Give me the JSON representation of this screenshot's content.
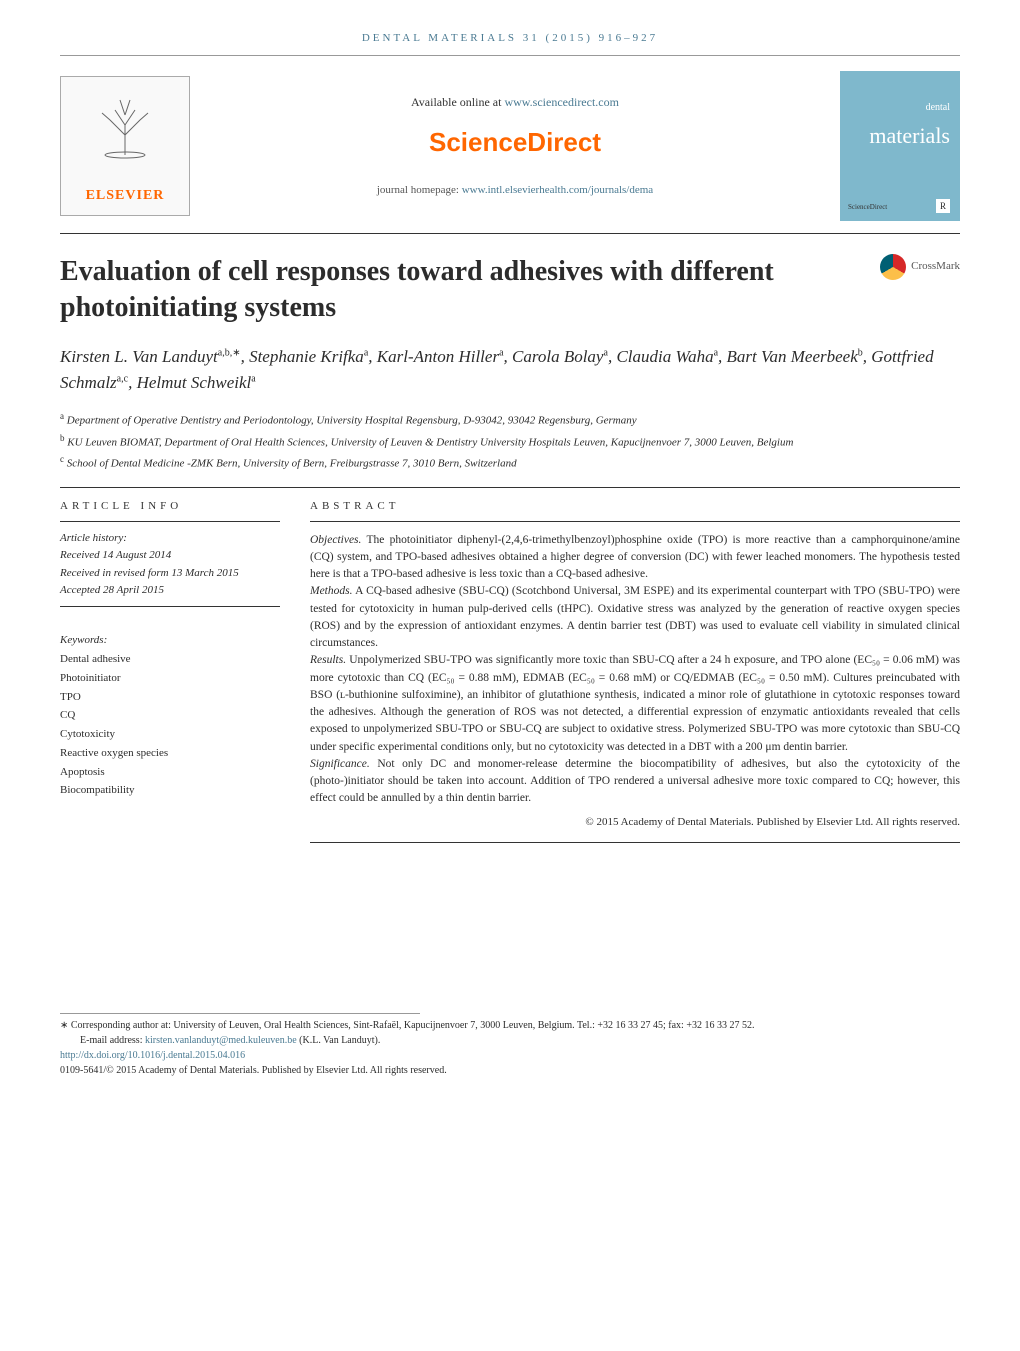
{
  "journal": {
    "header_citation": "DENTAL MATERIALS 31 (2015) 916–927",
    "available_text": "Available online at ",
    "available_link": "www.sciencedirect.com",
    "platform": "ScienceDirect",
    "homepage_label": "journal homepage: ",
    "homepage_link": "www.intl.elsevierhealth.com/journals/dema",
    "cover_title_line1": "dental",
    "cover_title_line2": "materials",
    "cover_footer": "ScienceDirect",
    "header_accent": "#4a7a92",
    "elsevier_color": "#ff6600",
    "cover_bg": "#7fb8cc"
  },
  "elsevier": {
    "name": "ELSEVIER"
  },
  "crossmark": {
    "label": "CrossMark"
  },
  "article": {
    "title": "Evaluation of cell responses toward adhesives with different photoinitiating systems",
    "title_fontsize": 28,
    "title_color": "#231f20"
  },
  "authors": [
    {
      "name": "Kirsten L. Van Landuyt",
      "aff": "a,b,∗"
    },
    {
      "name": "Stephanie Krifka",
      "aff": "a"
    },
    {
      "name": "Karl-Anton Hiller",
      "aff": "a"
    },
    {
      "name": "Carola Bolay",
      "aff": "a"
    },
    {
      "name": "Claudia Waha",
      "aff": "a"
    },
    {
      "name": "Bart Van Meerbeek",
      "aff": "b"
    },
    {
      "name": "Gottfried Schmalz",
      "aff": "a,c"
    },
    {
      "name": "Helmut Schweikl",
      "aff": "a"
    }
  ],
  "affiliations": [
    {
      "sup": "a",
      "text": "Department of Operative Dentistry and Periodontology, University Hospital Regensburg, D-93042, 93042 Regensburg, Germany"
    },
    {
      "sup": "b",
      "text": "KU Leuven BIOMAT, Department of Oral Health Sciences, University of Leuven & Dentistry University Hospitals Leuven, Kapucijnenvoer 7, 3000 Leuven, Belgium"
    },
    {
      "sup": "c",
      "text": "School of Dental Medicine -ZMK Bern, University of Bern, Freiburgstrasse 7, 3010 Bern, Switzerland"
    }
  ],
  "sections": {
    "info_label": "ARTICLE INFO",
    "abstract_label": "ABSTRACT"
  },
  "history": {
    "label": "Article history:",
    "received": "Received 14 August 2014",
    "revised": "Received in revised form 13 March 2015",
    "accepted": "Accepted 28 April 2015"
  },
  "keywords": {
    "label": "Keywords:",
    "items": [
      "Dental adhesive",
      "Photoinitiator",
      "TPO",
      "CQ",
      "Cytotoxicity",
      "Reactive oxygen species",
      "Apoptosis",
      "Biocompatibility"
    ]
  },
  "abstract": {
    "objectives_label": "Objectives.",
    "objectives": "The photoinitiator diphenyl-(2,4,6-trimethylbenzoyl)phosphine oxide (TPO) is more reactive than a camphorquinone/amine (CQ) system, and TPO-based adhesives obtained a higher degree of conversion (DC) with fewer leached monomers. The hypothesis tested here is that a TPO-based adhesive is less toxic than a CQ-based adhesive.",
    "methods_label": "Methods.",
    "methods": "A CQ-based adhesive (SBU-CQ) (Scotchbond Universal, 3M ESPE) and its experimental counterpart with TPO (SBU-TPO) were tested for cytotoxicity in human pulp-derived cells (tHPC). Oxidative stress was analyzed by the generation of reactive oxygen species (ROS) and by the expression of antioxidant enzymes. A dentin barrier test (DBT) was used to evaluate cell viability in simulated clinical circumstances.",
    "results_label": "Results.",
    "results": "Unpolymerized SBU-TPO was significantly more toxic than SBU-CQ after a 24 h exposure, and TPO alone (EC₅₀ = 0.06 mM) was more cytotoxic than CQ (EC₅₀ = 0.88 mM), EDMAB (EC₅₀ = 0.68 mM) or CQ/EDMAB (EC₅₀ = 0.50 mM). Cultures preincubated with BSO (ʟ-buthionine sulfoximine), an inhibitor of glutathione synthesis, indicated a minor role of glutathione in cytotoxic responses toward the adhesives. Although the generation of ROS was not detected, a differential expression of enzymatic antioxidants revealed that cells exposed to unpolymerized SBU-TPO or SBU-CQ are subject to oxidative stress. Polymerized SBU-TPO was more cytotoxic than SBU-CQ under specific experimental conditions only, but no cytotoxicity was detected in a DBT with a 200 μm dentin barrier.",
    "significance_label": "Significance.",
    "significance": "Not only DC and monomer-release determine the biocompatibility of adhesives, but also the cytotoxicity of the (photo-)initiator should be taken into account. Addition of TPO rendered a universal adhesive more toxic compared to CQ; however, this effect could be annulled by a thin dentin barrier.",
    "copyright": "© 2015 Academy of Dental Materials. Published by Elsevier Ltd. All rights reserved."
  },
  "footer": {
    "corresponding": "∗ Corresponding author at: University of Leuven, Oral Health Sciences, Sint-Rafaël, Kapucijnenvoer 7, 3000 Leuven, Belgium. Tel.: +32 16 33 27 45; fax: +32 16 33 27 52.",
    "email_label": "E-mail address: ",
    "email": "kirsten.vanlanduyt@med.kuleuven.be",
    "email_paren": " (K.L. Van Landuyt).",
    "doi": "http://dx.doi.org/10.1016/j.dental.2015.04.016",
    "issn_line": "0109-5641/© 2015 Academy of Dental Materials. Published by Elsevier Ltd. All rights reserved."
  }
}
